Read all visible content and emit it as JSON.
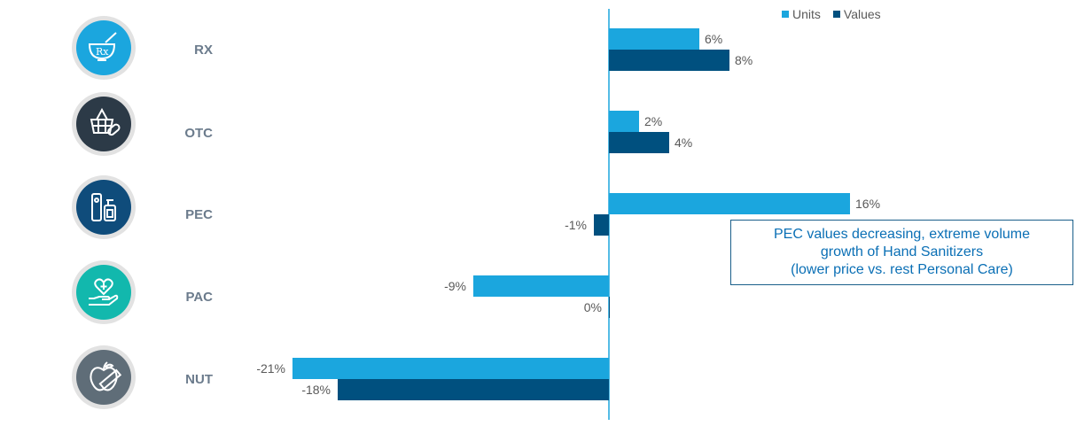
{
  "colors": {
    "units": "#1ba6de",
    "values": "#00507f",
    "axis": "#1ba6de",
    "label": "#595959",
    "category": "#6b7b8c"
  },
  "legend": {
    "units": "Units",
    "values": "Values"
  },
  "rows": [
    {
      "label": "RX",
      "icon": "mortar-pestle-rx-icon",
      "icon_color": "#1ba6de"
    },
    {
      "label": "OTC",
      "icon": "basket-pill-icon",
      "icon_color": "#2c3a47"
    },
    {
      "label": "PEC",
      "icon": "personal-care-bottles-icon",
      "icon_color": "#0f4c7b"
    },
    {
      "label": "PAC",
      "icon": "heart-hand-icon",
      "icon_color": "#12b8ad"
    },
    {
      "label": "NUT",
      "icon": "apple-measuring-tape-icon",
      "icon_color": "#5f6d78"
    }
  ],
  "annotation": {
    "lines": [
      "PEC values decreasing, extreme volume",
      "growth of Hand Sanitizers",
      "(lower price vs. rest Personal Care)"
    ]
  },
  "chart_data": {
    "type": "bar",
    "orientation": "horizontal",
    "categories": [
      "RX",
      "OTC",
      "PEC",
      "PAC",
      "NUT"
    ],
    "series": [
      {
        "name": "Units",
        "values": [
          6,
          2,
          16,
          -9,
          -21
        ],
        "labels": [
          "6%",
          "2%",
          "16%",
          "-9%",
          "-21%"
        ]
      },
      {
        "name": "Values",
        "values": [
          8,
          4,
          -1,
          0,
          -18
        ],
        "labels": [
          "8%",
          "4%",
          "-1%",
          "0%",
          "-18%"
        ]
      }
    ],
    "legend_position": "top-right",
    "grid": false
  }
}
